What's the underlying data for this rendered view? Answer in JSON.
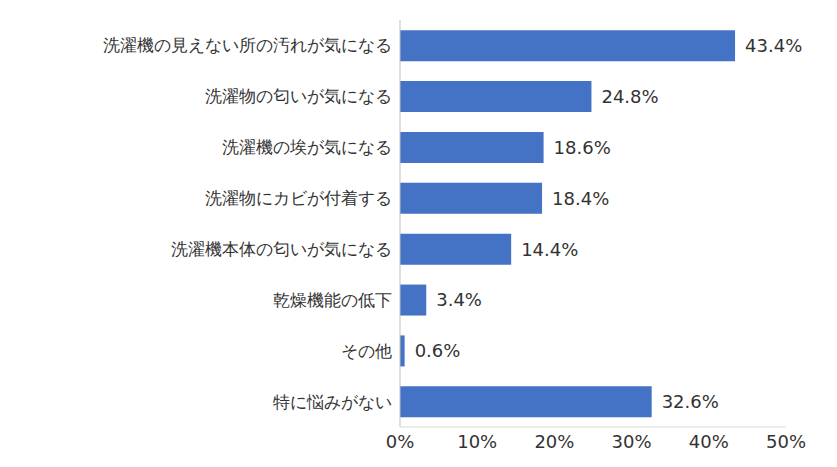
{
  "chart_data": {
    "type": "bar",
    "orientation": "horizontal",
    "categories": [
      "洗濯機の見えない所の汚れが気になる",
      "洗濯物の匂いが気になる",
      "洗濯機の埃が気になる",
      "洗濯物にカビが付着する",
      "洗濯機本体の匂いが気になる",
      "乾燥機能の低下",
      "その他",
      "特に悩みがない"
    ],
    "values": [
      43.4,
      24.8,
      18.6,
      18.4,
      14.4,
      3.4,
      0.6,
      32.6
    ],
    "value_labels": [
      "43.4%",
      "24.8%",
      "18.6%",
      "18.4%",
      "14.4%",
      "3.4%",
      "0.6%",
      "32.6%"
    ],
    "color": "#4472c4",
    "xlim": [
      0,
      50
    ],
    "xticks": [
      {
        "value": 0,
        "label": "0%"
      },
      {
        "value": 10,
        "label": "10%"
      },
      {
        "value": 20,
        "label": "20%"
      },
      {
        "value": 30,
        "label": "30%"
      },
      {
        "value": 40,
        "label": "40%"
      },
      {
        "value": 50,
        "label": "50%"
      }
    ],
    "data_labels": true,
    "grid": false
  }
}
